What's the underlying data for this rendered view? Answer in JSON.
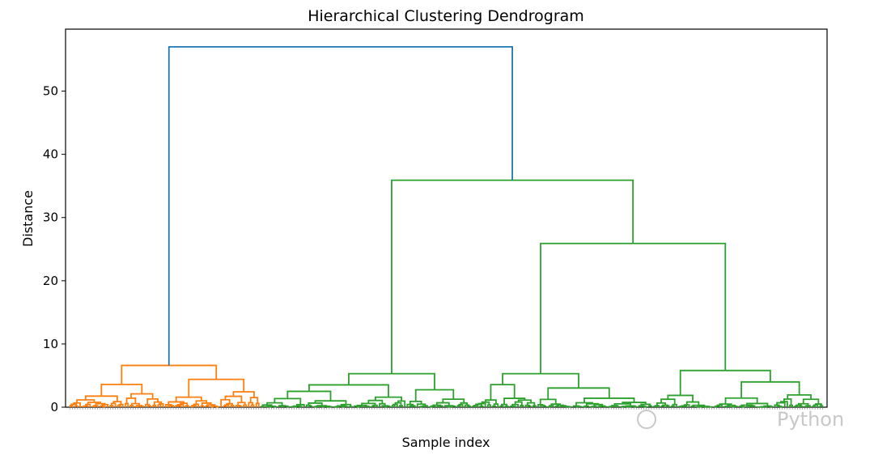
{
  "chart_data": {
    "type": "dendrogram",
    "title": "Hierarchical Clustering Dendrogram",
    "xlabel": "Sample index",
    "ylabel": "Distance",
    "ylim": [
      0,
      59.8
    ],
    "yticks": [
      0,
      10,
      20,
      30,
      40,
      50
    ],
    "leaf_count": 300,
    "colors": {
      "top_link": "#1f77b4",
      "cluster_1": "#ff7f0e",
      "cluster_2": "#2ca02c"
    },
    "merges": [
      {
        "name": "root",
        "height": 57.0,
        "children": [
          "cluster_orange",
          "cluster_green"
        ],
        "color": "top_link"
      },
      {
        "name": "cluster_green",
        "height": 35.9,
        "children": [
          "green_a",
          "green_bc"
        ],
        "color": "cluster_2"
      },
      {
        "name": "green_bc",
        "height": 25.9,
        "children": [
          "green_b",
          "green_c"
        ],
        "color": "cluster_2"
      },
      {
        "name": "cluster_orange",
        "height": 6.6,
        "children": [
          "orange_a",
          "orange_b"
        ],
        "color": "cluster_1"
      },
      {
        "name": "green_a",
        "height": 5.3,
        "color": "cluster_2"
      },
      {
        "name": "green_b",
        "height": 5.3,
        "color": "cluster_2"
      },
      {
        "name": "green_c",
        "height": 5.8,
        "color": "cluster_2"
      }
    ]
  },
  "watermark": "Python"
}
